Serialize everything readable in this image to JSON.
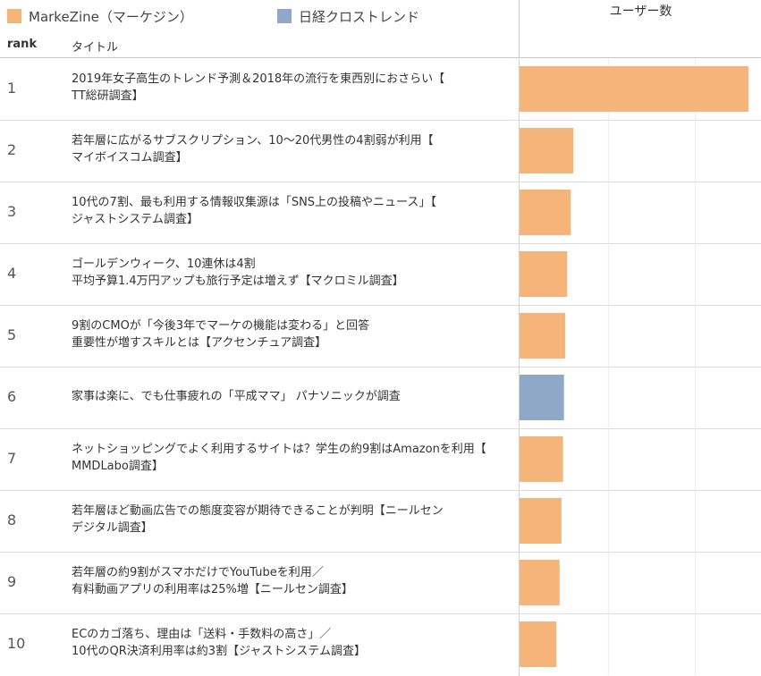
{
  "legend": [
    {
      "label": "MarkeZine（マーケジン）",
      "color": "#f5b57a"
    },
    {
      "label": "日経クロストレンド",
      "color": "#8fa8c8"
    }
  ],
  "table": {
    "rank_header": "rank",
    "title_header": "タイトル",
    "measure_header": "ユーザー数"
  },
  "rows": [
    {
      "rank": "1",
      "title1": "2019年女子高生のトレンド予測＆2018年の流行を東西別におさらい【",
      "title2": "TT総研調査】"
    },
    {
      "rank": "2",
      "title1": "若年層に広がるサブスクリプション、10～20代男性の4割弱が利用【",
      "title2": "マイボイスコム調査】"
    },
    {
      "rank": "3",
      "title1": "10代の7割、最も利用する情報収集源は「SNS上の投稿やニュース」【",
      "title2": "ジャストシステム調査】"
    },
    {
      "rank": "4",
      "title1": "ゴールデンウィーク、10連休は4割",
      "title2": "平均予算1.4万円アップも旅行予定は増えず【マクロミル調査】"
    },
    {
      "rank": "5",
      "title1": "9割のCMOが「今後3年でマーケの機能は変わる」と回答",
      "title2": "重要性が増すスキルとは【アクセンチュア調査】"
    },
    {
      "rank": "6",
      "title1": "家事は楽に、でも仕事疲れの「平成ママ」 パナソニックが調査",
      "title2": ""
    },
    {
      "rank": "7",
      "title1": "ネットショッピングでよく利用するサイトは？学生の約9割はAmazonを利用【",
      "title2": "MMDLabo調査】"
    },
    {
      "rank": "8",
      "title1": "若年層ほど動画広告での態度変容が期待できることが判明【ニールセン",
      "title2": "デジタル調査】"
    },
    {
      "rank": "9",
      "title1": "若年層の約9割がスマホだけでYouTubeを利用／",
      "title2": "有料動画アプリの利用率は25%増【ニールセン調査】"
    },
    {
      "rank": "10",
      "title1": "ECのカゴ落ち、理由は「送料・手数料の高さ」／",
      "title2": "10代のQR決済利用率は約3割【ジャストシステム調査】"
    }
  ],
  "chart_data": {
    "type": "bar",
    "orientation": "horizontal",
    "measure": "ユーザー数",
    "categories": [
      "1",
      "2",
      "3",
      "4",
      "5",
      "6",
      "7",
      "8",
      "9",
      "10"
    ],
    "values": [
      100,
      23.5,
      22.4,
      20.8,
      19.9,
      19.4,
      19.0,
      18.3,
      17.5,
      16.1
    ],
    "sources": [
      "MarkeZine（マーケジン）",
      "MarkeZine（マーケジン）",
      "MarkeZine（マーケジン）",
      "MarkeZine（マーケジン）",
      "MarkeZine（マーケジン）",
      "日経クロストレンド",
      "MarkeZine（マーケジン）",
      "MarkeZine（マーケジン）",
      "MarkeZine（マーケジン）",
      "MarkeZine（マーケジン）"
    ],
    "colors": {
      "MarkeZine（マーケジン）": "#f5b57a",
      "日経クロストレンド": "#8fa8c8"
    },
    "xlim": [
      0,
      100
    ],
    "grid": true
  }
}
